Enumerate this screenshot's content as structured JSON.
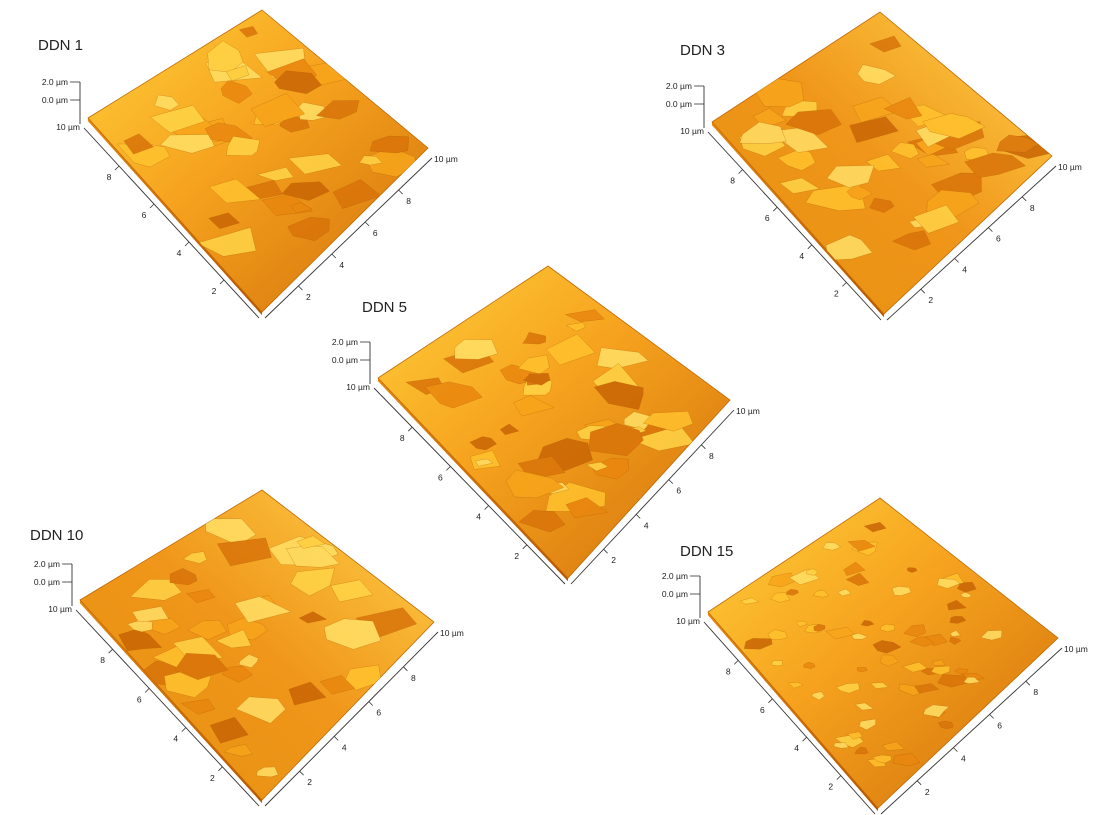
{
  "colors": {
    "surface_light": "#ffd84a",
    "surface_mid": "#f5a623",
    "surface_dark": "#c35b00",
    "shadow": "#8a3a00"
  },
  "panels": [
    {
      "title": "DDN 1",
      "z_top": "2.0 µm",
      "z_bottom": "0.0 µm",
      "left_max": "10 µm",
      "right_max": "10 µm",
      "left_ticks": [
        "8",
        "6",
        "4",
        "2"
      ],
      "right_ticks": [
        "8",
        "6",
        "4",
        "2"
      ]
    },
    {
      "title": "DDN 3",
      "z_top": "2.0 µm",
      "z_bottom": "0.0 µm",
      "left_max": "10 µm",
      "right_max": "10 µm",
      "left_ticks": [
        "8",
        "6",
        "4",
        "2"
      ],
      "right_ticks": [
        "8",
        "6",
        "4",
        "2"
      ]
    },
    {
      "title": "DDN 5",
      "z_top": "2.0 µm",
      "z_bottom": "0.0 µm",
      "left_max": "10 µm",
      "right_max": "10 µm",
      "left_ticks": [
        "8",
        "6",
        "4",
        "2"
      ],
      "right_ticks": [
        "8",
        "6",
        "4",
        "2"
      ]
    },
    {
      "title": "DDN 10",
      "z_top": "2.0 µm",
      "z_bottom": "0.0 µm",
      "left_max": "10 µm",
      "right_max": "10 µm",
      "left_ticks": [
        "8",
        "6",
        "4",
        "2"
      ],
      "right_ticks": [
        "8",
        "6",
        "4",
        "2"
      ]
    },
    {
      "title": "DDN 15",
      "z_top": "2.0 µm",
      "z_bottom": "0.0 µm",
      "left_max": "10 µm",
      "right_max": "10 µm",
      "left_ticks": [
        "8",
        "6",
        "4",
        "2"
      ],
      "right_ticks": [
        "8",
        "6",
        "4",
        "2"
      ]
    }
  ]
}
